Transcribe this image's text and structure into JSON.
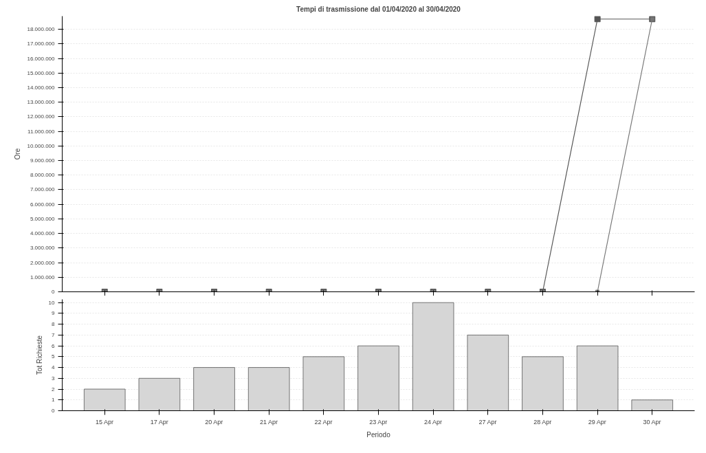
{
  "chart_data": [
    {
      "type": "line",
      "title": "Tempi di trasmissione dal 01/04/2020 al 30/04/2020",
      "ylabel": "Ore",
      "categories": [
        null,
        null,
        null,
        null,
        null,
        null,
        null,
        null,
        null,
        null,
        null
      ],
      "series": [
        {
          "color": "#555555",
          "values": [
            0,
            0,
            0,
            0,
            0,
            0,
            0,
            0,
            0,
            18700000,
            18700000
          ]
        },
        {
          "color": "#777777",
          "values": [
            0,
            0,
            0,
            0,
            0,
            0,
            0,
            0,
            0,
            0,
            18700000
          ]
        }
      ],
      "ylim": [
        0,
        18900000
      ],
      "yticks": [
        {
          "value": 0,
          "label": "0"
        },
        {
          "value": 1000000,
          "label": "1.000.000"
        },
        {
          "value": 2000000,
          "label": "2.000.000"
        },
        {
          "value": 3000000,
          "label": "3.000.000"
        },
        {
          "value": 4000000,
          "label": "4.000.000"
        },
        {
          "value": 5000000,
          "label": "5.000.000"
        },
        {
          "value": 6000000,
          "label": "6.000.000"
        },
        {
          "value": 7000000,
          "label": "7.000.000"
        },
        {
          "value": 8000000,
          "label": "8.000.000"
        },
        {
          "value": 9000000,
          "label": "9.000.000"
        },
        {
          "value": 10000000,
          "label": "10.000.000"
        },
        {
          "value": 11000000,
          "label": "11.000.000"
        },
        {
          "value": 12000000,
          "label": "12.000.000"
        },
        {
          "value": 13000000,
          "label": "13.000.000"
        },
        {
          "value": 14000000,
          "label": "14.000.000"
        },
        {
          "value": 15000000,
          "label": "15.000.000"
        },
        {
          "value": 16000000,
          "label": "16.000.000"
        },
        {
          "value": 17000000,
          "label": "17.000.000"
        },
        {
          "value": 18000000,
          "label": "18.000.000"
        }
      ],
      "marker": "square",
      "line_style": "solid",
      "grid": "y",
      "tick_labels": "y"
    },
    {
      "type": "bar",
      "xlabel": "Periodo",
      "ylabel": "Tot Richieste",
      "categories": [
        "15 Apr",
        "17 Apr",
        "20 Apr",
        "21 Apr",
        "22 Apr",
        "23 Apr",
        "24 Apr",
        "27 Apr",
        "28 Apr",
        "29 Apr",
        "30 Apr"
      ],
      "values": [
        2,
        3,
        4,
        4,
        5,
        6,
        10,
        7,
        5,
        6,
        1
      ],
      "color": "#d6d6d6",
      "ylim": [
        0,
        10.3
      ],
      "yticks": [
        0,
        1,
        2,
        3,
        4,
        5,
        6,
        7,
        8,
        9,
        10
      ],
      "grid": "y"
    }
  ]
}
